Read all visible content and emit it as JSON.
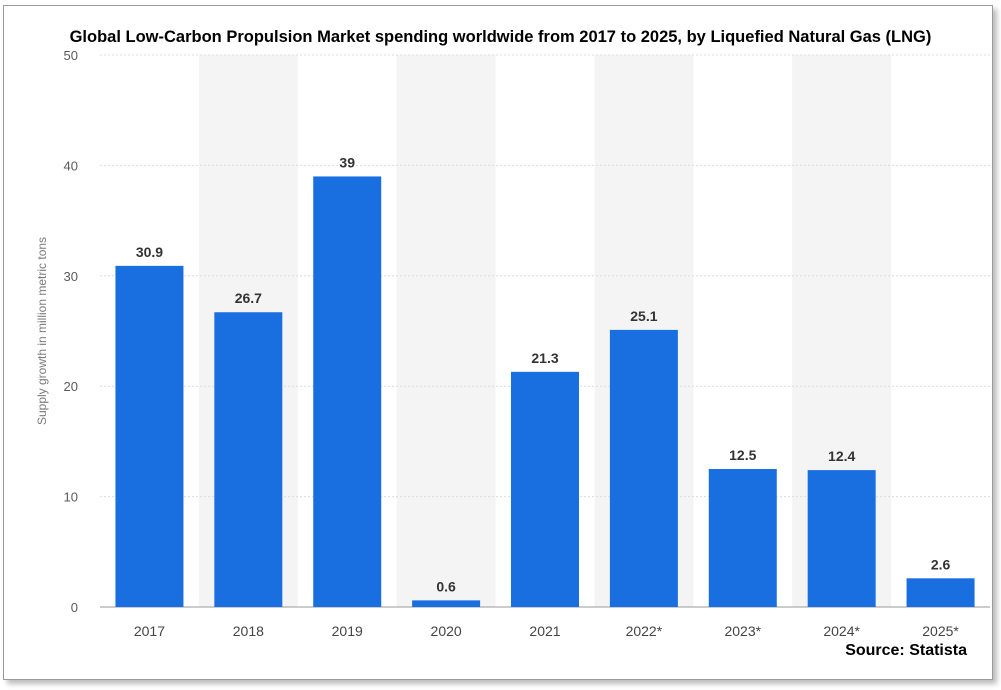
{
  "chart_data": {
    "type": "bar",
    "title": "Global Low-Carbon Propulsion Market spending worldwide from 2017 to 2025, by Liquefied Natural Gas (LNG)",
    "ylabel": "Supply growth in million metric tons",
    "source": "Source: Statista",
    "categories": [
      "2017",
      "2018",
      "2019",
      "2020",
      "2021",
      "2022*",
      "2023*",
      "2024*",
      "2025*"
    ],
    "values": [
      30.9,
      26.7,
      39,
      0.6,
      21.3,
      25.1,
      12.5,
      12.4,
      2.6
    ],
    "value_labels": [
      "30.9",
      "26.7",
      "39",
      "0.6",
      "21.3",
      "25.1",
      "12.5",
      "12.4",
      "2.6"
    ],
    "ylim": [
      0,
      50
    ],
    "yticks": [
      0,
      10,
      20,
      30,
      40,
      50
    ],
    "grid": true,
    "bar_color": "#1a6fe0"
  }
}
